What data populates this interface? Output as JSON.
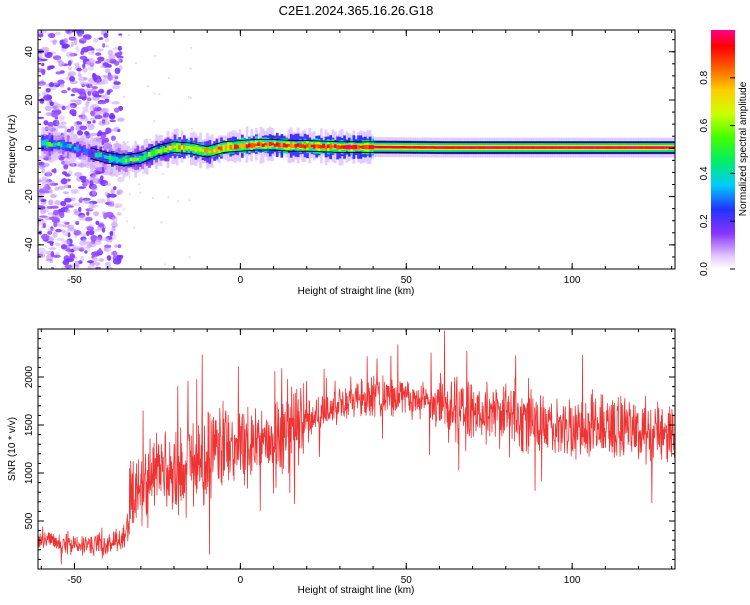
{
  "title": "C2E1.2024.365.16.26.G18",
  "chart_data": [
    {
      "type": "heatmap",
      "xlabel": "Height of straight line (km)",
      "ylabel": "Frequency (Hz)",
      "xlim": [
        -61,
        131
      ],
      "ylim": [
        -50,
        49
      ],
      "xticks": [
        -50,
        0,
        50,
        100
      ],
      "xtick_labels": [
        "-50",
        "0",
        "50",
        "100"
      ],
      "yticks": [
        40,
        20,
        0,
        -20,
        -40
      ],
      "ytick_labels": [
        "40",
        "20",
        "0",
        "-20",
        "-40"
      ],
      "colorbar": {
        "label": "Normalized spectral amplitude",
        "range": [
          0,
          1
        ],
        "ticks": [
          0.0,
          0.2,
          0.4,
          0.6,
          0.8
        ],
        "tick_labels": [
          "0.0",
          "0.2",
          "0.4",
          "0.6",
          "0.8"
        ]
      },
      "ridge": {
        "height_km": [
          -60,
          -55,
          -50,
          -45,
          -40,
          -35,
          -30,
          -25,
          -20,
          -15,
          -10,
          -5,
          0,
          5,
          10,
          15,
          20,
          30,
          40,
          60,
          80,
          100,
          130
        ],
        "frequency_hz": [
          2,
          1.5,
          0,
          -2,
          -4,
          -5,
          -4,
          -1,
          0.5,
          0,
          -1.5,
          0.5,
          1,
          1.5,
          1.5,
          1,
          1,
          0.5,
          0.5,
          0.3,
          0.3,
          0.3,
          0.3
        ],
        "peak_amplitude": [
          0.5,
          0.4,
          0.3,
          0.3,
          0.45,
          0.5,
          0.55,
          0.6,
          0.75,
          0.7,
          0.72,
          0.8,
          0.85,
          0.9,
          0.92,
          0.9,
          0.88,
          0.92,
          0.95,
          0.97,
          0.98,
          0.98,
          0.98
        ]
      },
      "noise_band_km": [
        -61,
        -36
      ]
    },
    {
      "type": "line",
      "xlabel": "Height of straight line (km)",
      "ylabel": "SNR (10 * v/v)",
      "xlim": [
        -61,
        131
      ],
      "ylim": [
        0,
        2500
      ],
      "xticks": [
        -50,
        0,
        50,
        100
      ],
      "xtick_labels": [
        "-50",
        "0",
        "50",
        "100"
      ],
      "yticks": [
        500,
        1000,
        1500,
        2000
      ],
      "ytick_labels": [
        "500",
        "1000",
        "1500",
        "2000"
      ],
      "series_color": "#ee3333",
      "envelope": {
        "height_km": [
          -61,
          -55,
          -50,
          -45,
          -40,
          -35,
          -33,
          -30,
          -25,
          -20,
          -15,
          -10,
          -5,
          0,
          5,
          10,
          20,
          30,
          40,
          50,
          60,
          70,
          80,
          90,
          100,
          110,
          120,
          131
        ],
        "snr": [
          300,
          270,
          260,
          240,
          270,
          320,
          700,
          900,
          1000,
          950,
          1100,
          1150,
          1350,
          1300,
          1350,
          1400,
          1550,
          1750,
          1800,
          1800,
          1700,
          1650,
          1600,
          1500,
          1450,
          1500,
          1450,
          1400
        ]
      }
    }
  ]
}
